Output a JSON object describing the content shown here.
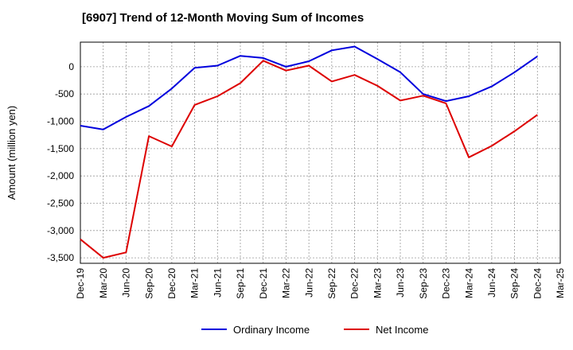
{
  "chart_data": {
    "type": "line",
    "title": "[6907]  Trend of 12-Month Moving Sum of Incomes",
    "xlabel": "",
    "ylabel": "Amount (million yen)",
    "ylim": [
      -3600,
      450
    ],
    "yticks": [
      0,
      -500,
      -1000,
      -1500,
      -2000,
      -2500,
      -3000,
      -3500
    ],
    "ytick_labels": [
      "0",
      "-500",
      "-1,000",
      "-1,500",
      "-2,000",
      "-2,500",
      "-3,000",
      "-3,500"
    ],
    "categories": [
      "Dec-19",
      "Mar-20",
      "Jun-20",
      "Sep-20",
      "Dec-20",
      "Mar-21",
      "Jun-21",
      "Sep-21",
      "Dec-21",
      "Mar-22",
      "Jun-22",
      "Sep-22",
      "Dec-22",
      "Mar-23",
      "Jun-23",
      "Sep-23",
      "Dec-23",
      "Mar-24",
      "Jun-24",
      "Sep-24",
      "Dec-24",
      "Mar-25"
    ],
    "grid": true,
    "legend_position": "bottom-center",
    "series": [
      {
        "name": "Ordinary Income",
        "color": "#0000dd",
        "values": [
          -1080,
          -1150,
          -920,
          -720,
          -400,
          -20,
          20,
          200,
          160,
          0,
          100,
          300,
          370,
          140,
          -100,
          -500,
          -630,
          -540,
          -360,
          -100,
          190,
          null
        ]
      },
      {
        "name": "Net Income",
        "color": "#dd0000",
        "values": [
          -3160,
          -3500,
          -3400,
          -1270,
          -1460,
          -700,
          -540,
          -300,
          110,
          -70,
          20,
          -270,
          -150,
          -350,
          -620,
          -530,
          -670,
          -1660,
          -1450,
          -1180,
          -880,
          null
        ]
      }
    ]
  }
}
